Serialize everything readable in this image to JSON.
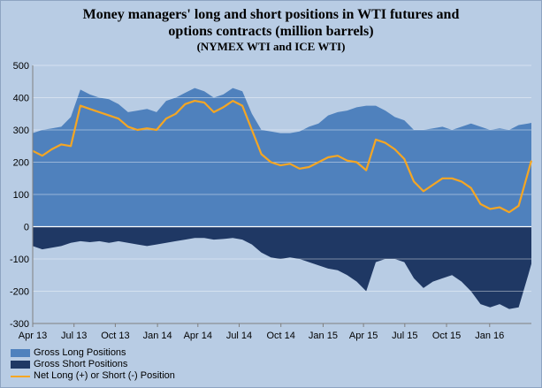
{
  "title": {
    "line1": "Money managers' long and short positions in WTI futures and",
    "line2": "options contracts (million barrels)",
    "line3": "(NYMEX WTI and ICE WTI)"
  },
  "colors": {
    "background": "#b8cce4",
    "gross_long": "#4f81bd",
    "gross_short": "#1f3864",
    "net": "#f5a623",
    "grid": "#ffffff"
  },
  "legend": {
    "long": "Gross Long Positions",
    "short": "Gross Short Positions",
    "net": "Net Long (+) or Short (-) Position"
  },
  "chart_data": {
    "type": "area",
    "x_start": "2013-04-02",
    "x_end": "2016-04-05",
    "x_ticks": [
      {
        "label": "Apr 13",
        "date": "2013-04-02"
      },
      {
        "label": "Jul 13",
        "date": "2013-07-02"
      },
      {
        "label": "Oct 13",
        "date": "2013-10-01"
      },
      {
        "label": "Jan 14",
        "date": "2014-01-02"
      },
      {
        "label": "Apr 14",
        "date": "2014-04-01"
      },
      {
        "label": "Jul 14",
        "date": "2014-07-01"
      },
      {
        "label": "Oct 14",
        "date": "2014-10-01"
      },
      {
        "label": "Jan 15",
        "date": "2015-01-02"
      },
      {
        "label": "Apr 15",
        "date": "2015-04-01"
      },
      {
        "label": "Jul 15",
        "date": "2015-07-01"
      },
      {
        "label": "Oct 15",
        "date": "2015-10-01"
      },
      {
        "label": "Jan 16",
        "date": "2016-01-04"
      }
    ],
    "ylim": [
      -300,
      500
    ],
    "yticks": [
      -300,
      -200,
      -100,
      0,
      100,
      200,
      300,
      400,
      500
    ],
    "grid": true,
    "legend_position": "bottom-left",
    "series": [
      {
        "name": "Gross Long Positions",
        "kind": "area",
        "points": [
          [
            "2013-04-02",
            290
          ],
          [
            "2013-04-23",
            300
          ],
          [
            "2013-05-14",
            305
          ],
          [
            "2013-06-04",
            310
          ],
          [
            "2013-06-25",
            340
          ],
          [
            "2013-07-16",
            425
          ],
          [
            "2013-08-06",
            410
          ],
          [
            "2013-08-27",
            400
          ],
          [
            "2013-09-17",
            395
          ],
          [
            "2013-10-08",
            380
          ],
          [
            "2013-10-29",
            355
          ],
          [
            "2013-11-19",
            360
          ],
          [
            "2013-12-10",
            365
          ],
          [
            "2013-12-31",
            355
          ],
          [
            "2014-01-21",
            390
          ],
          [
            "2014-02-11",
            400
          ],
          [
            "2014-03-04",
            415
          ],
          [
            "2014-03-25",
            430
          ],
          [
            "2014-04-15",
            420
          ],
          [
            "2014-05-06",
            400
          ],
          [
            "2014-05-27",
            410
          ],
          [
            "2014-06-17",
            430
          ],
          [
            "2014-07-08",
            420
          ],
          [
            "2014-07-29",
            350
          ],
          [
            "2014-08-19",
            300
          ],
          [
            "2014-09-09",
            295
          ],
          [
            "2014-09-30",
            290
          ],
          [
            "2014-10-21",
            290
          ],
          [
            "2014-11-11",
            295
          ],
          [
            "2014-12-02",
            310
          ],
          [
            "2014-12-23",
            320
          ],
          [
            "2015-01-13",
            345
          ],
          [
            "2015-02-03",
            355
          ],
          [
            "2015-02-24",
            360
          ],
          [
            "2015-03-17",
            370
          ],
          [
            "2015-04-07",
            375
          ],
          [
            "2015-04-28",
            375
          ],
          [
            "2015-05-19",
            360
          ],
          [
            "2015-06-09",
            340
          ],
          [
            "2015-06-30",
            330
          ],
          [
            "2015-07-21",
            300
          ],
          [
            "2015-08-11",
            300
          ],
          [
            "2015-09-01",
            305
          ],
          [
            "2015-09-22",
            310
          ],
          [
            "2015-10-13",
            300
          ],
          [
            "2015-11-03",
            310
          ],
          [
            "2015-11-24",
            320
          ],
          [
            "2015-12-15",
            310
          ],
          [
            "2016-01-05",
            300
          ],
          [
            "2016-01-26",
            305
          ],
          [
            "2016-02-16",
            300
          ],
          [
            "2016-03-08",
            315
          ],
          [
            "2016-03-29",
            320
          ],
          [
            "2016-04-05",
            322
          ]
        ]
      },
      {
        "name": "Gross Short Positions",
        "kind": "area",
        "points": [
          [
            "2013-04-02",
            -60
          ],
          [
            "2013-04-23",
            -70
          ],
          [
            "2013-05-14",
            -65
          ],
          [
            "2013-06-04",
            -60
          ],
          [
            "2013-06-25",
            -50
          ],
          [
            "2013-07-16",
            -45
          ],
          [
            "2013-08-06",
            -48
          ],
          [
            "2013-08-27",
            -45
          ],
          [
            "2013-09-17",
            -50
          ],
          [
            "2013-10-08",
            -45
          ],
          [
            "2013-10-29",
            -50
          ],
          [
            "2013-11-19",
            -55
          ],
          [
            "2013-12-10",
            -60
          ],
          [
            "2013-12-31",
            -55
          ],
          [
            "2014-01-21",
            -50
          ],
          [
            "2014-02-11",
            -45
          ],
          [
            "2014-03-04",
            -40
          ],
          [
            "2014-03-25",
            -35
          ],
          [
            "2014-04-15",
            -35
          ],
          [
            "2014-05-06",
            -40
          ],
          [
            "2014-05-27",
            -38
          ],
          [
            "2014-06-17",
            -35
          ],
          [
            "2014-07-08",
            -40
          ],
          [
            "2014-07-29",
            -55
          ],
          [
            "2014-08-19",
            -80
          ],
          [
            "2014-09-09",
            -95
          ],
          [
            "2014-09-30",
            -100
          ],
          [
            "2014-10-21",
            -95
          ],
          [
            "2014-11-11",
            -100
          ],
          [
            "2014-12-02",
            -110
          ],
          [
            "2014-12-23",
            -120
          ],
          [
            "2015-01-13",
            -130
          ],
          [
            "2015-02-03",
            -135
          ],
          [
            "2015-02-24",
            -150
          ],
          [
            "2015-03-17",
            -170
          ],
          [
            "2015-04-07",
            -200
          ],
          [
            "2015-04-28",
            -110
          ],
          [
            "2015-05-19",
            -100
          ],
          [
            "2015-06-09",
            -100
          ],
          [
            "2015-06-30",
            -110
          ],
          [
            "2015-07-21",
            -160
          ],
          [
            "2015-08-11",
            -190
          ],
          [
            "2015-09-01",
            -170
          ],
          [
            "2015-09-22",
            -160
          ],
          [
            "2015-10-13",
            -150
          ],
          [
            "2015-11-03",
            -170
          ],
          [
            "2015-11-24",
            -200
          ],
          [
            "2015-12-15",
            -240
          ],
          [
            "2016-01-05",
            -250
          ],
          [
            "2016-01-26",
            -240
          ],
          [
            "2016-02-16",
            -255
          ],
          [
            "2016-03-08",
            -250
          ],
          [
            "2016-03-29",
            -150
          ],
          [
            "2016-04-05",
            -115
          ]
        ]
      },
      {
        "name": "Net Long (+) or Short (-) Position",
        "kind": "line",
        "points": [
          [
            "2013-04-02",
            235
          ],
          [
            "2013-04-23",
            220
          ],
          [
            "2013-05-14",
            240
          ],
          [
            "2013-06-04",
            255
          ],
          [
            "2013-06-25",
            250
          ],
          [
            "2013-07-16",
            375
          ],
          [
            "2013-08-06",
            365
          ],
          [
            "2013-08-27",
            355
          ],
          [
            "2013-09-17",
            345
          ],
          [
            "2013-10-08",
            335
          ],
          [
            "2013-10-29",
            310
          ],
          [
            "2013-11-19",
            300
          ],
          [
            "2013-12-10",
            305
          ],
          [
            "2013-12-31",
            300
          ],
          [
            "2014-01-21",
            335
          ],
          [
            "2014-02-11",
            350
          ],
          [
            "2014-03-04",
            380
          ],
          [
            "2014-03-25",
            390
          ],
          [
            "2014-04-15",
            385
          ],
          [
            "2014-05-06",
            355
          ],
          [
            "2014-05-27",
            370
          ],
          [
            "2014-06-17",
            390
          ],
          [
            "2014-07-08",
            375
          ],
          [
            "2014-07-29",
            300
          ],
          [
            "2014-08-19",
            225
          ],
          [
            "2014-09-09",
            200
          ],
          [
            "2014-09-30",
            190
          ],
          [
            "2014-10-21",
            195
          ],
          [
            "2014-11-11",
            180
          ],
          [
            "2014-12-02",
            185
          ],
          [
            "2014-12-23",
            200
          ],
          [
            "2015-01-13",
            215
          ],
          [
            "2015-02-03",
            220
          ],
          [
            "2015-02-24",
            205
          ],
          [
            "2015-03-17",
            200
          ],
          [
            "2015-04-07",
            175
          ],
          [
            "2015-04-28",
            270
          ],
          [
            "2015-05-19",
            260
          ],
          [
            "2015-06-09",
            240
          ],
          [
            "2015-06-30",
            210
          ],
          [
            "2015-07-21",
            140
          ],
          [
            "2015-08-11",
            110
          ],
          [
            "2015-09-01",
            130
          ],
          [
            "2015-09-22",
            150
          ],
          [
            "2015-10-13",
            150
          ],
          [
            "2015-11-03",
            140
          ],
          [
            "2015-11-24",
            120
          ],
          [
            "2015-12-15",
            70
          ],
          [
            "2016-01-05",
            55
          ],
          [
            "2016-01-26",
            60
          ],
          [
            "2016-02-16",
            45
          ],
          [
            "2016-03-08",
            65
          ],
          [
            "2016-03-29",
            170
          ],
          [
            "2016-04-05",
            205
          ]
        ]
      }
    ]
  }
}
